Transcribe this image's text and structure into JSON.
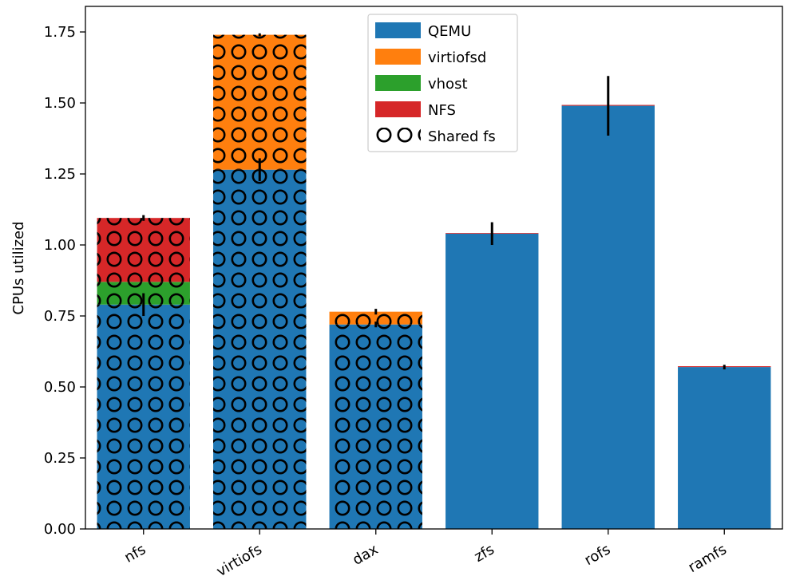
{
  "chart_data": {
    "type": "bar",
    "stacked": true,
    "title": "",
    "xlabel": "",
    "ylabel": "CPUs utilized",
    "ylim": [
      0,
      1.84
    ],
    "yticks": [
      "0.00",
      "0.25",
      "0.50",
      "0.75",
      "1.00",
      "1.25",
      "1.50",
      "1.75"
    ],
    "ytick_values": [
      0,
      0.25,
      0.5,
      0.75,
      1.0,
      1.25,
      1.5,
      1.75
    ],
    "categories": [
      "nfs",
      "virtiofs",
      "dax",
      "zfs",
      "rofs",
      "ramfs"
    ],
    "shared_fs": [
      true,
      true,
      true,
      false,
      false,
      false
    ],
    "series": [
      {
        "name": "QEMU",
        "color": "#1f77b4",
        "values": [
          0.79,
          1.265,
          0.72,
          1.04,
          1.49,
          0.57
        ]
      },
      {
        "name": "virtiofsd",
        "color": "#ff7f0e",
        "values": [
          0,
          0.475,
          0.045,
          0,
          0,
          0
        ]
      },
      {
        "name": "vhost",
        "color": "#2ca02c",
        "values": [
          0.08,
          0,
          0,
          0,
          0,
          0
        ]
      },
      {
        "name": "NFS",
        "color": "#d62728",
        "values": [
          0.225,
          0,
          0,
          0.002,
          0.003,
          0.003
        ]
      }
    ],
    "error_bars": [
      {
        "category": "nfs",
        "value": 0.79,
        "err": 0.04
      },
      {
        "category": "nfs",
        "value": 1.095,
        "err": 0.01
      },
      {
        "category": "virtiofs",
        "value": 1.265,
        "err": 0.04
      },
      {
        "category": "virtiofs",
        "value": 1.74,
        "err": 0.005
      },
      {
        "category": "dax",
        "value": 0.72,
        "err": 0.01
      },
      {
        "category": "dax",
        "value": 0.765,
        "err": 0.01
      },
      {
        "category": "zfs",
        "value": 1.04,
        "err": 0.04
      },
      {
        "category": "rofs",
        "value": 1.49,
        "err": 0.105
      },
      {
        "category": "ramfs",
        "value": 0.57,
        "err": 0.008
      }
    ],
    "legend": {
      "position": "top-center",
      "entries": [
        "QEMU",
        "virtiofsd",
        "vhost",
        "NFS",
        "Shared fs"
      ]
    },
    "grid": false
  }
}
